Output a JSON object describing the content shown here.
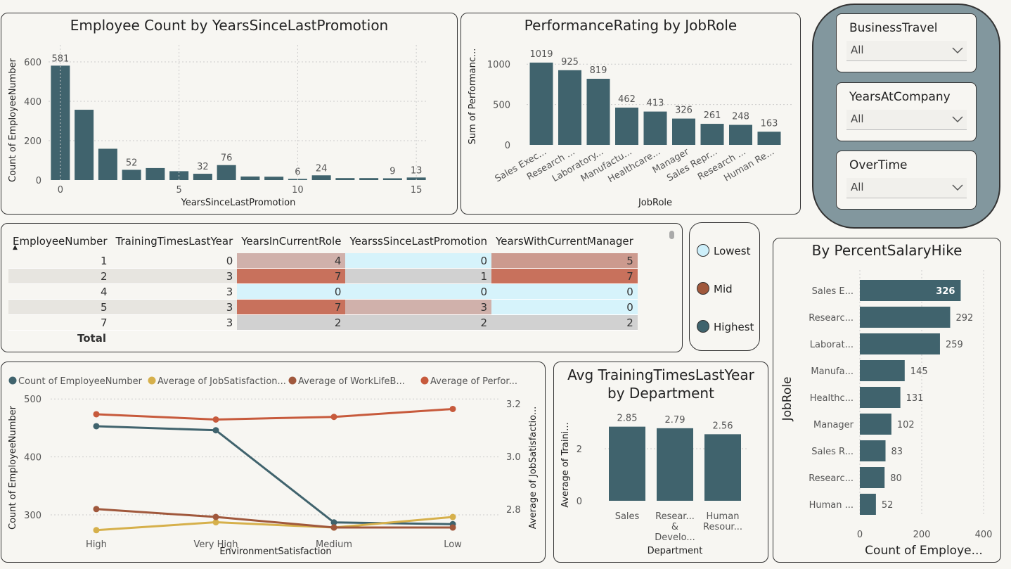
{
  "promo_chart": {
    "title": "Employee Count by YearsSinceLastPromotion",
    "chart_data": {
      "type": "bar",
      "title": "Employee Count by YearsSinceLastPromotion",
      "xlabel": "YearsSinceLastPromotion",
      "ylabel": "Count of EmployeeNumber",
      "x": [
        0,
        1,
        2,
        3,
        4,
        5,
        6,
        7,
        8,
        9,
        10,
        11,
        12,
        13,
        14,
        15
      ],
      "values": [
        581,
        357,
        159,
        52,
        61,
        45,
        32,
        76,
        18,
        17,
        6,
        24,
        10,
        10,
        9,
        13
      ],
      "data_labels": {
        "0": "581",
        "3": "52",
        "6": "32",
        "7": "76",
        "10": "6",
        "11": "24",
        "14": "9",
        "15": "13"
      },
      "ylim": [
        0,
        650
      ],
      "y_ticks": [
        "0",
        "200",
        "400",
        "600"
      ],
      "x_ticks": [
        "0",
        "5",
        "10",
        "15"
      ],
      "grid": true
    }
  },
  "perf_chart": {
    "title": "PerformanceRating by JobRole",
    "chart_data": {
      "type": "bar",
      "title": "PerformanceRating by JobRole",
      "xlabel": "JobRole",
      "ylabel": "Sum of Performanc...",
      "categories": [
        "Sales Exec...",
        "Research ...",
        "Laboratory...",
        "Manufactu...",
        "Healthcare...",
        "Manager",
        "Sales Repr...",
        "Research ...",
        "Human Re..."
      ],
      "values": [
        1019,
        925,
        819,
        462,
        413,
        326,
        261,
        248,
        163
      ],
      "ylim": [
        0,
        1150
      ],
      "y_ticks": [
        "0",
        "500",
        "1000"
      ],
      "grid": true
    }
  },
  "slicers": [
    {
      "label": "BusinessTravel",
      "value": "All"
    },
    {
      "label": "YearsAtCompany",
      "value": "All"
    },
    {
      "label": "OverTime",
      "value": "All"
    }
  ],
  "matrix": {
    "headers": [
      "EmployeeNumber",
      "TrainingTimesLastYear",
      "YearsInCurrentRole",
      "YearssSinceLastPromotion",
      "YearsWithCurrentManager"
    ],
    "rows": [
      {
        "cells": [
          "1",
          "0",
          "4",
          "0",
          "5"
        ]
      },
      {
        "cells": [
          "2",
          "3",
          "7",
          "1",
          "7"
        ]
      },
      {
        "cells": [
          "4",
          "3",
          "0",
          "0",
          "0"
        ]
      },
      {
        "cells": [
          "5",
          "3",
          "7",
          "3",
          "0"
        ]
      },
      {
        "cells": [
          "7",
          "3",
          "2",
          "2",
          "2"
        ]
      }
    ],
    "total_label": "Total",
    "colors": {
      "low": "#d6f3fb",
      "mid_low": "#d1d1d1",
      "mid": "#d0b1ab",
      "mid_high": "#cc9a8e",
      "high": "#c8715c"
    }
  },
  "legend": {
    "items": [
      {
        "label": "Lowest",
        "color": "#cdeffa"
      },
      {
        "label": "Mid",
        "color": "#a0583c"
      },
      {
        "label": "Highest",
        "color": "#40636d"
      }
    ]
  },
  "line_chart": {
    "chart_data": {
      "type": "line",
      "categories": [
        "High",
        "Very High",
        "Medium",
        "Low"
      ],
      "xlabel": "EnvironmentSatisfaction",
      "ylabel_left": "Count of EmployeeNumber",
      "ylabel_right": "Average of JobSatisfactio...",
      "left_ticks": [
        "300",
        "400",
        "500"
      ],
      "right_ticks": [
        "2.8",
        "3.0",
        "3.2"
      ],
      "left_ylim": [
        260,
        510
      ],
      "right_ylim": [
        2.69,
        3.24
      ],
      "series": [
        {
          "name": "Count of EmployeeNumber",
          "axis": "left",
          "color": "#40636d",
          "values": [
            453,
            446,
            287,
            284
          ]
        },
        {
          "name": "Average of JobSatisfaction...",
          "axis": "right",
          "color": "#d6b04b",
          "values": [
            2.72,
            2.75,
            2.73,
            2.77
          ]
        },
        {
          "name": "Average of WorkLifeB...",
          "axis": "right",
          "color": "#a0583c",
          "values": [
            2.8,
            2.77,
            2.73,
            2.73
          ]
        },
        {
          "name": "Average of Perfor...",
          "axis": "right",
          "color": "#c75a3c",
          "values": [
            3.16,
            3.14,
            3.15,
            3.18
          ]
        }
      ],
      "grid": true
    }
  },
  "training_chart": {
    "title_line1": "Avg TrainingTimesLastYear",
    "title_line2": "by Department",
    "chart_data": {
      "type": "bar",
      "title": "Avg TrainingTimesLastYear by Department",
      "xlabel": "Department",
      "ylabel": "Average of Traini...",
      "categories": [
        [
          "Sales"
        ],
        [
          "Resear...",
          "&",
          "Develo..."
        ],
        [
          "Human",
          "Resour..."
        ]
      ],
      "values": [
        2.85,
        2.79,
        2.56
      ],
      "data_labels": [
        "2.85",
        "2.79",
        "2.56"
      ],
      "ylim": [
        0,
        3.3
      ],
      "y_ticks": [
        "0",
        "2"
      ],
      "grid": true
    }
  },
  "salary_chart": {
    "title": "By PercentSalaryHike",
    "chart_data": {
      "type": "bar",
      "orientation": "horizontal",
      "title": "By PercentSalaryHike",
      "ylabel": "JobRole",
      "xlabel": "Count of Employe...",
      "categories": [
        "Sales E...",
        "Researc...",
        "Laborat...",
        "Manufa...",
        "Healthc...",
        "Manager",
        "Sales R...",
        "Researc...",
        "Human ..."
      ],
      "values": [
        326,
        292,
        259,
        145,
        131,
        102,
        83,
        80,
        52
      ],
      "xlim": [
        0,
        400
      ],
      "x_ticks": [
        "0",
        "200",
        "400"
      ],
      "grid": true
    }
  }
}
